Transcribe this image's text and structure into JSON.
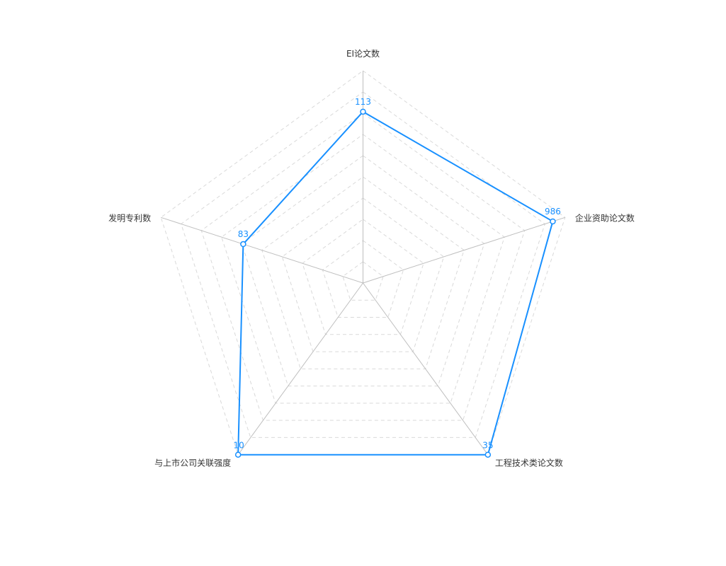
{
  "chart_data": {
    "type": "radar",
    "indicators": [
      {
        "name": "EI论文数",
        "value": 113,
        "max": 140
      },
      {
        "name": "企业资助论文数",
        "value": 986,
        "max": 1050
      },
      {
        "name": "工程技术类论文数",
        "value": 35,
        "max": 35
      },
      {
        "name": "与上市公司关联强度",
        "value": 10,
        "max": 10
      },
      {
        "name": "发明专利数",
        "value": 83,
        "max": 140
      }
    ],
    "series": [
      {
        "values": [
          113,
          986,
          35,
          10,
          83
        ]
      }
    ],
    "split_number": 10,
    "grid": "dashed",
    "colors": {
      "line": "#1890ff",
      "point_fill": "#ffffff",
      "grid": "#d9d9d9",
      "axis": "#bfbfbf",
      "label": "#333333"
    }
  }
}
